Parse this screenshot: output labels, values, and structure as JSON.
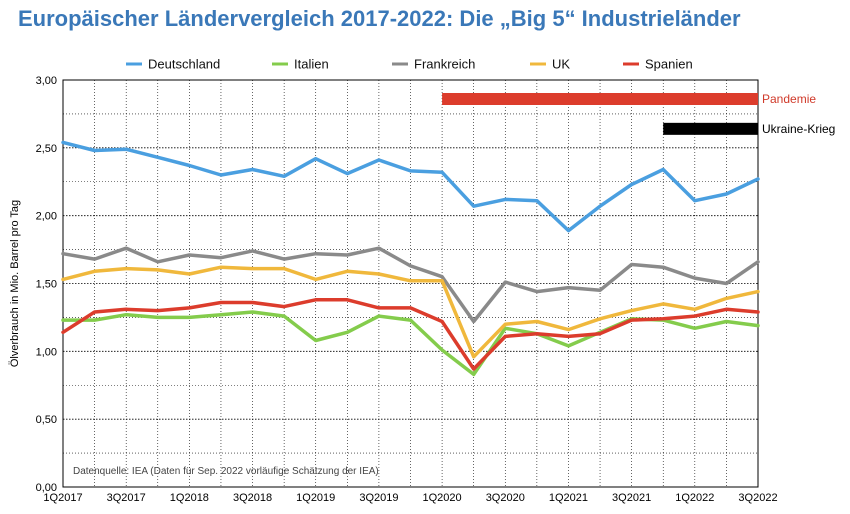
{
  "chart_data": {
    "type": "line",
    "title": "Europäischer Ländervergleich 2017-2022: Die „Big 5“ Industrieländer",
    "ylabel": "Ölverbrauch in Mio. Barrel pro Tag",
    "xlabel": "",
    "ylim": [
      0,
      3
    ],
    "yticks": [
      "0,00",
      "0,50",
      "1,00",
      "1,50",
      "2,00",
      "2,50",
      "3,00"
    ],
    "x": [
      "1Q2017",
      "2Q2017",
      "3Q2017",
      "4Q2017",
      "1Q2018",
      "2Q2018",
      "3Q2018",
      "4Q2018",
      "1Q2019",
      "2Q2019",
      "3Q2019",
      "4Q2019",
      "1Q2020",
      "2Q2020",
      "3Q2020",
      "4Q2020",
      "1Q2021",
      "2Q2021",
      "3Q2021",
      "4Q2021",
      "1Q2022",
      "2Q2022",
      "3Q2022"
    ],
    "xtick_labels": [
      "1Q2017",
      "3Q2017",
      "1Q2018",
      "3Q2018",
      "1Q2019",
      "3Q2019",
      "1Q2020",
      "3Q2020",
      "1Q2021",
      "3Q2021",
      "1Q2022",
      "3Q2022"
    ],
    "grid": true,
    "legend_position": "top",
    "series": [
      {
        "name": "Deutschland",
        "color": "#4a9fe0",
        "values": [
          2.54,
          2.48,
          2.49,
          2.43,
          2.37,
          2.3,
          2.34,
          2.29,
          2.42,
          2.31,
          2.41,
          2.33,
          2.32,
          2.07,
          2.12,
          2.11,
          1.89,
          2.07,
          2.23,
          2.34,
          2.11,
          2.16,
          2.27
        ]
      },
      {
        "name": "Italien",
        "color": "#84cc4c",
        "values": [
          1.23,
          1.23,
          1.27,
          1.25,
          1.25,
          1.27,
          1.29,
          1.26,
          1.08,
          1.14,
          1.26,
          1.23,
          1.01,
          0.83,
          1.17,
          1.13,
          1.04,
          1.14,
          1.24,
          1.23,
          1.17,
          1.22,
          1.19
        ]
      },
      {
        "name": "Frankreich",
        "color": "#8a8a8a",
        "values": [
          1.72,
          1.68,
          1.76,
          1.66,
          1.71,
          1.69,
          1.74,
          1.68,
          1.72,
          1.71,
          1.76,
          1.63,
          1.55,
          1.22,
          1.51,
          1.44,
          1.47,
          1.45,
          1.64,
          1.62,
          1.54,
          1.5,
          1.66
        ]
      },
      {
        "name": "UK",
        "color": "#f0b83c",
        "values": [
          1.53,
          1.59,
          1.61,
          1.6,
          1.57,
          1.62,
          1.61,
          1.61,
          1.53,
          1.59,
          1.57,
          1.52,
          1.52,
          0.96,
          1.2,
          1.22,
          1.16,
          1.24,
          1.3,
          1.35,
          1.31,
          1.39,
          1.44
        ]
      },
      {
        "name": "Spanien",
        "color": "#dc3c2c",
        "values": [
          1.14,
          1.29,
          1.31,
          1.3,
          1.32,
          1.36,
          1.36,
          1.33,
          1.38,
          1.38,
          1.32,
          1.32,
          1.22,
          0.87,
          1.11,
          1.13,
          1.11,
          1.13,
          1.23,
          1.24,
          1.26,
          1.31,
          1.29
        ]
      }
    ],
    "annotations": [
      {
        "label": "Pandemie",
        "color": "#dc3c2c",
        "text_color": "#d03a2a",
        "start": "1Q2020",
        "end": "3Q2022",
        "level": 2.86
      },
      {
        "label": "Ukraine-Krieg",
        "color": "#000000",
        "text_color": "#000000",
        "start": "4Q2021",
        "end": "3Q2022",
        "level": 2.64
      }
    ],
    "source_note": "Datenquelle: IEA (Daten für Sep. 2022 vorläufige Schätzung der IEA)"
  }
}
